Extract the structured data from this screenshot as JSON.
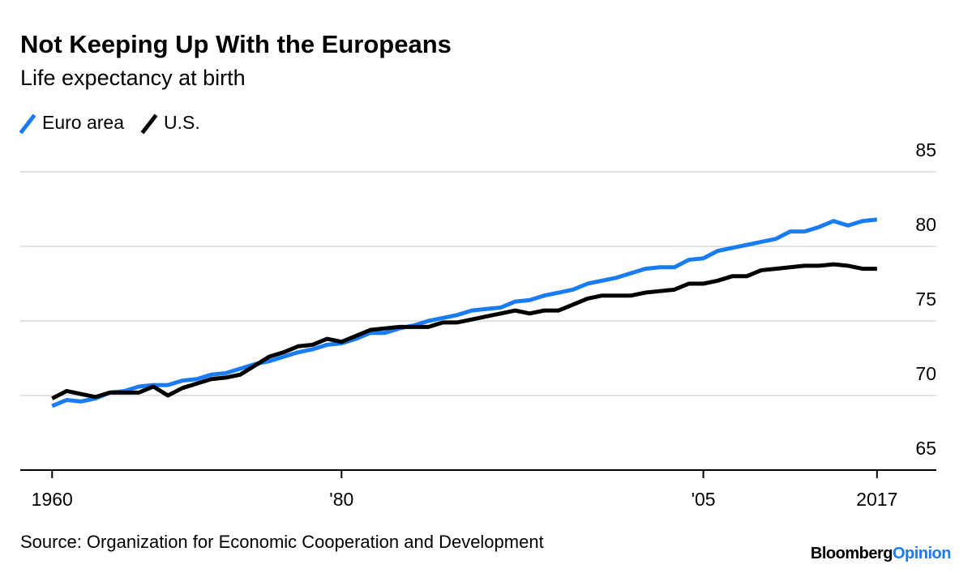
{
  "chart_data": {
    "type": "line",
    "title": "Not Keeping Up With the Europeans",
    "subtitle": "Life expectancy at birth",
    "x": [
      1960,
      1961,
      1962,
      1963,
      1964,
      1965,
      1966,
      1967,
      1968,
      1969,
      1970,
      1971,
      1972,
      1973,
      1974,
      1975,
      1976,
      1977,
      1978,
      1979,
      1980,
      1981,
      1982,
      1983,
      1984,
      1985,
      1986,
      1987,
      1988,
      1989,
      1990,
      1991,
      1992,
      1993,
      1994,
      1995,
      1996,
      1997,
      1998,
      1999,
      2000,
      2001,
      2002,
      2003,
      2004,
      2005,
      2006,
      2007,
      2008,
      2009,
      2010,
      2011,
      2012,
      2013,
      2014,
      2015,
      2016,
      2017
    ],
    "series": [
      {
        "name": "Euro area",
        "color": "#1a7cf5",
        "values": [
          69.3,
          69.7,
          69.6,
          69.8,
          70.2,
          70.3,
          70.6,
          70.7,
          70.7,
          71.0,
          71.1,
          71.4,
          71.5,
          71.8,
          72.1,
          72.3,
          72.6,
          72.9,
          73.1,
          73.4,
          73.5,
          73.8,
          74.2,
          74.2,
          74.5,
          74.7,
          75.0,
          75.2,
          75.4,
          75.7,
          75.8,
          75.9,
          76.3,
          76.4,
          76.7,
          76.9,
          77.1,
          77.5,
          77.7,
          77.9,
          78.2,
          78.5,
          78.6,
          78.6,
          79.1,
          79.2,
          79.7,
          79.9,
          80.1,
          80.3,
          80.5,
          81.0,
          81.0,
          81.3,
          81.7,
          81.4,
          81.7,
          81.8
        ]
      },
      {
        "name": "U.S.",
        "color": "#000000",
        "values": [
          69.8,
          70.3,
          70.1,
          69.9,
          70.2,
          70.2,
          70.2,
          70.6,
          70.0,
          70.5,
          70.8,
          71.1,
          71.2,
          71.4,
          72.0,
          72.6,
          72.9,
          73.3,
          73.4,
          73.8,
          73.6,
          74.0,
          74.4,
          74.5,
          74.6,
          74.6,
          74.6,
          74.9,
          74.9,
          75.1,
          75.3,
          75.5,
          75.7,
          75.5,
          75.7,
          75.7,
          76.1,
          76.5,
          76.7,
          76.7,
          76.7,
          76.9,
          77.0,
          77.1,
          77.5,
          77.5,
          77.7,
          78.0,
          78.0,
          78.4,
          78.5,
          78.6,
          78.7,
          78.7,
          78.8,
          78.7,
          78.5,
          78.5
        ]
      }
    ],
    "xlim": [
      1957.8,
      2021.1
    ],
    "xticks": [
      1960,
      {
        "value": 1980,
        "label": "'80"
      },
      {
        "value": 2005,
        "label": "'05"
      },
      2017
    ],
    "ylim": [
      65,
      85
    ],
    "yticks": [
      65,
      70,
      75,
      80,
      85
    ],
    "grid": true,
    "source": "Source: Organization for Economic Cooperation and Development",
    "credit": {
      "brand": "Bloomberg",
      "section": "Opinion",
      "brand_color": "#000000",
      "section_color": "#1a7cf5"
    }
  }
}
